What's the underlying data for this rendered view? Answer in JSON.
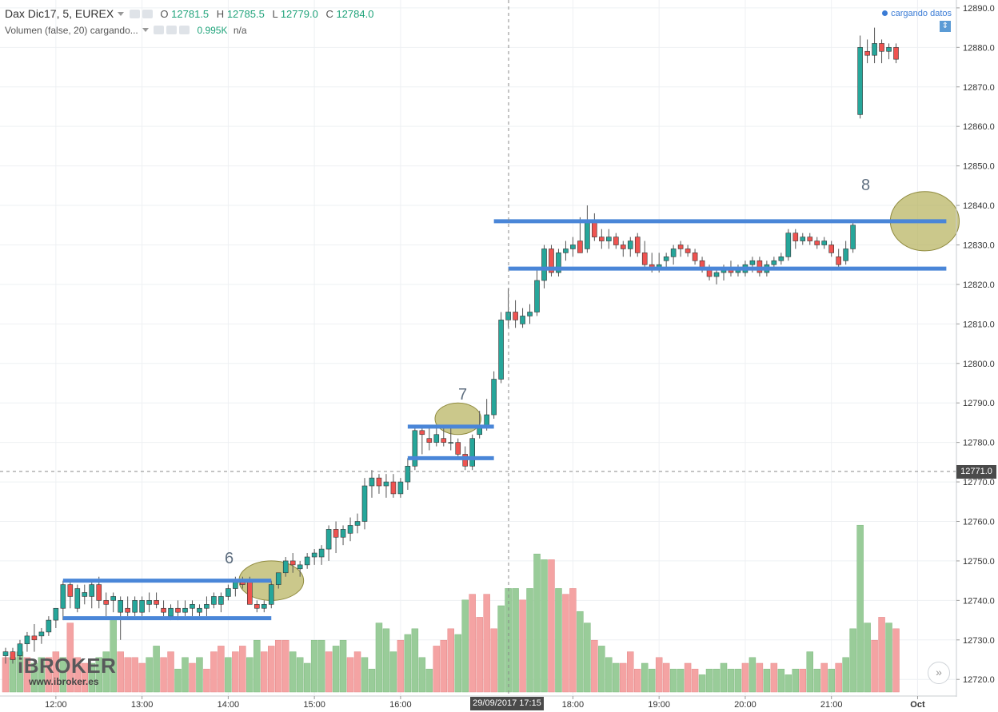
{
  "header": {
    "symbol": "Dax Dic17, 5, EUREX",
    "o_label": "O",
    "o_value": "12781.5",
    "h_label": "H",
    "h_value": "12785.5",
    "l_label": "L",
    "l_value": "12779.0",
    "c_label": "C",
    "c_value": "12784.0",
    "volume_title": "Volumen (false, 20) cargando...",
    "volume_value": "0.995K",
    "volume_na": "n/a"
  },
  "status": {
    "loading_text": "cargando datos",
    "scale_icon": "scale-icon"
  },
  "brand": {
    "name": "iBROKER",
    "url": "www.ibroker.es"
  },
  "crosshair": {
    "price_label": "12771.0",
    "time_label": "29/09/2017 17:15"
  },
  "annotations": {
    "label_6": "6",
    "label_7": "7",
    "label_8": "8"
  },
  "colors": {
    "up": "#26a69a",
    "down": "#ef5350",
    "vol_up": "#99cc99",
    "vol_down": "#f4a3a3",
    "level": "#4a86d8",
    "highlight": "#b5b05a"
  },
  "chart_data": {
    "type": "candlestick",
    "y_axis": {
      "ticks": [
        "12720.0",
        "12730.0",
        "12740.0",
        "12750.0",
        "12760.0",
        "12770.0",
        "12780.0",
        "12790.0",
        "12800.0",
        "12810.0",
        "12820.0",
        "12830.0",
        "12840.0",
        "12850.0",
        "12860.0",
        "12870.0",
        "12880.0",
        "12890.0"
      ],
      "range": [
        12716,
        12892
      ]
    },
    "x_axis": {
      "ticks": [
        {
          "label": "12:00",
          "slot": 7
        },
        {
          "label": "13:00",
          "slot": 19
        },
        {
          "label": "14:00",
          "slot": 31
        },
        {
          "label": "15:00",
          "slot": 43
        },
        {
          "label": "16:00",
          "slot": 55
        },
        {
          "label": "18:00",
          "slot": 79
        },
        {
          "label": "19:00",
          "slot": 91
        },
        {
          "label": "20:00",
          "slot": 103
        },
        {
          "label": "21:00",
          "slot": 115
        },
        {
          "label": "Oct",
          "slot": 127
        }
      ]
    },
    "candles": [
      [
        12726,
        12728,
        12724,
        12727
      ],
      [
        12727,
        12728,
        12724,
        12725
      ],
      [
        12726,
        12730,
        12725,
        12729
      ],
      [
        12729,
        12732,
        12727,
        12731
      ],
      [
        12731,
        12734,
        12727,
        12730
      ],
      [
        12731,
        12733,
        12729,
        12732
      ],
      [
        12732,
        12736,
        12731,
        12735
      ],
      [
        12735,
        12738,
        12733,
        12738
      ],
      [
        12738,
        12745,
        12735,
        12744
      ],
      [
        12744,
        12745,
        12738,
        12741
      ],
      [
        12738,
        12744,
        12737,
        12743
      ],
      [
        12741,
        12744,
        12739,
        12742
      ],
      [
        12741,
        12745,
        12738,
        12744
      ],
      [
        12744,
        12746,
        12738,
        12740
      ],
      [
        12740,
        12742,
        12736,
        12739
      ],
      [
        12740,
        12742,
        12737,
        12741
      ],
      [
        12737,
        12741,
        12730,
        12740
      ],
      [
        12738,
        12741,
        12736,
        12737
      ],
      [
        12737,
        12741,
        12736,
        12740
      ],
      [
        12737,
        12741,
        12736,
        12740
      ],
      [
        12739,
        12742,
        12737,
        12740
      ],
      [
        12740,
        12742,
        12738,
        12739
      ],
      [
        12738,
        12740,
        12736,
        12737
      ],
      [
        12736,
        12739,
        12735,
        12738
      ],
      [
        12738,
        12740,
        12735,
        12737
      ],
      [
        12737,
        12740,
        12736,
        12738
      ],
      [
        12738,
        12740,
        12736,
        12739
      ],
      [
        12737,
        12739,
        12736,
        12738
      ],
      [
        12738,
        12741,
        12736,
        12739
      ],
      [
        12739,
        12742,
        12738,
        12741
      ],
      [
        12739,
        12742,
        12737,
        12741
      ],
      [
        12741,
        12744,
        12740,
        12743
      ],
      [
        12743,
        12746,
        12741,
        12745
      ],
      [
        12745,
        12746,
        12743,
        12744
      ],
      [
        12745,
        12746,
        12739,
        12739
      ],
      [
        12739,
        12740,
        12737,
        12738
      ],
      [
        12738,
        12740,
        12737,
        12739
      ],
      [
        12739,
        12745,
        12738,
        12744
      ],
      [
        12744,
        12747,
        12743,
        12747
      ],
      [
        12747,
        12751,
        12746,
        12750
      ],
      [
        12750,
        12752,
        12747,
        12749
      ],
      [
        12748,
        12750,
        12746,
        12749
      ],
      [
        12749,
        12752,
        12748,
        12751
      ],
      [
        12751,
        12753,
        12749,
        12752
      ],
      [
        12751,
        12754,
        12749,
        12753
      ],
      [
        12753,
        12759,
        12750,
        12758
      ],
      [
        12758,
        12760,
        12752,
        12756
      ],
      [
        12756,
        12759,
        12754,
        12758
      ],
      [
        12757,
        12761,
        12755,
        12759
      ],
      [
        12759,
        12762,
        12757,
        12760
      ],
      [
        12760,
        12771,
        12758,
        12769
      ],
      [
        12769,
        12773,
        12766,
        12771
      ],
      [
        12771,
        12772,
        12767,
        12769
      ],
      [
        12769,
        12772,
        12766,
        12770
      ],
      [
        12770,
        12772,
        12766,
        12767
      ],
      [
        12767,
        12771,
        12766,
        12770
      ],
      [
        12770,
        12776,
        12768,
        12774
      ],
      [
        12774,
        12784,
        12773,
        12783
      ],
      [
        12783,
        12784,
        12777,
        12782
      ],
      [
        12781,
        12784,
        12778,
        12780
      ],
      [
        12780,
        12784,
        12779,
        12782
      ],
      [
        12781,
        12784,
        12779,
        12780
      ],
      [
        12780,
        12784,
        12778,
        12780
      ],
      [
        12780,
        12781,
        12776,
        12777
      ],
      [
        12777,
        12779,
        12773,
        12774
      ],
      [
        12774,
        12782,
        12773,
        12781
      ],
      [
        12782,
        12788,
        12781,
        12784
      ],
      [
        12784,
        12791,
        12783,
        12787
      ],
      [
        12787,
        12798,
        12786,
        12796
      ],
      [
        12796,
        12813,
        12795,
        12811
      ],
      [
        12811,
        12819,
        12809,
        12813
      ],
      [
        12813,
        12816,
        12809,
        12811
      ],
      [
        12810,
        12814,
        12809,
        12812
      ],
      [
        12812,
        12815,
        12810,
        12813
      ],
      [
        12813,
        12824,
        12812,
        12821
      ],
      [
        12821,
        12830,
        12819,
        12829
      ],
      [
        12829,
        12830,
        12822,
        12823
      ],
      [
        12823,
        12829,
        12822,
        12828
      ],
      [
        12828,
        12831,
        12826,
        12829
      ],
      [
        12829,
        12832,
        12827,
        12830
      ],
      [
        12831,
        12837,
        12828,
        12828
      ],
      [
        12829,
        12840,
        12828,
        12836
      ],
      [
        12836,
        12838,
        12831,
        12832
      ],
      [
        12832,
        12834,
        12829,
        12831
      ],
      [
        12831,
        12834,
        12829,
        12832
      ],
      [
        12832,
        12833,
        12829,
        12830
      ],
      [
        12830,
        12831,
        12827,
        12829
      ],
      [
        12829,
        12832,
        12827,
        12831
      ],
      [
        12832,
        12833,
        12827,
        12828
      ],
      [
        12828,
        12831,
        12824,
        12825
      ],
      [
        12825,
        12828,
        12823,
        12824
      ],
      [
        12824,
        12828,
        12823,
        12825
      ],
      [
        12826,
        12828,
        12824,
        12827
      ],
      [
        12827,
        12830,
        12825,
        12829
      ],
      [
        12830,
        12831,
        12827,
        12829
      ],
      [
        12829,
        12830,
        12827,
        12828
      ],
      [
        12828,
        12829,
        12825,
        12826
      ],
      [
        12826,
        12827,
        12823,
        12824
      ],
      [
        12824,
        12825,
        12821,
        12822
      ],
      [
        12822,
        12824,
        12820,
        12823
      ],
      [
        12823,
        12825,
        12821,
        12824
      ],
      [
        12824,
        12826,
        12822,
        12823
      ],
      [
        12823,
        12825,
        12822,
        12824
      ],
      [
        12823,
        12826,
        12822,
        12825
      ],
      [
        12825,
        12827,
        12823,
        12826
      ],
      [
        12826,
        12827,
        12822,
        12823
      ],
      [
        12823,
        12826,
        12822,
        12825
      ],
      [
        12825,
        12827,
        12824,
        12826
      ],
      [
        12826,
        12828,
        12825,
        12827
      ],
      [
        12827,
        12834,
        12826,
        12833
      ],
      [
        12833,
        12834,
        12829,
        12831
      ],
      [
        12831,
        12833,
        12830,
        12832
      ],
      [
        12832,
        12833,
        12830,
        12831
      ],
      [
        12831,
        12832,
        12829,
        12830
      ],
      [
        12830,
        12832,
        12829,
        12831
      ],
      [
        12830,
        12831,
        12827,
        12828
      ],
      [
        12827,
        12829,
        12824,
        12825
      ],
      [
        12826,
        12831,
        12825,
        12829
      ],
      [
        12829,
        12836,
        12828,
        12835
      ],
      [
        12863,
        12883,
        12862,
        12880
      ],
      [
        12879,
        12882,
        12876,
        12878
      ],
      [
        12878,
        12885,
        12876,
        12881
      ],
      [
        12881,
        12882,
        12876,
        12879
      ],
      [
        12879,
        12881,
        12877,
        12880
      ],
      [
        12880,
        12881,
        12876,
        12877
      ]
    ],
    "volume": {
      "ymax": 1000,
      "values": [
        [
          60,
          0
        ],
        [
          60,
          1
        ],
        [
          70,
          1
        ],
        [
          60,
          0
        ],
        [
          50,
          1
        ],
        [
          60,
          1
        ],
        [
          60,
          0
        ],
        [
          70,
          0
        ],
        [
          60,
          1
        ],
        [
          120,
          0
        ],
        [
          60,
          0
        ],
        [
          50,
          0
        ],
        [
          50,
          1
        ],
        [
          60,
          1
        ],
        [
          70,
          1
        ],
        [
          130,
          1
        ],
        [
          70,
          0
        ],
        [
          60,
          0
        ],
        [
          60,
          0
        ],
        [
          50,
          0
        ],
        [
          60,
          1
        ],
        [
          80,
          1
        ],
        [
          60,
          0
        ],
        [
          70,
          0
        ],
        [
          40,
          1
        ],
        [
          60,
          1
        ],
        [
          50,
          0
        ],
        [
          60,
          1
        ],
        [
          40,
          0
        ],
        [
          70,
          0
        ],
        [
          80,
          0
        ],
        [
          60,
          1
        ],
        [
          70,
          0
        ],
        [
          80,
          0
        ],
        [
          60,
          1
        ],
        [
          90,
          1
        ],
        [
          70,
          0
        ],
        [
          80,
          0
        ],
        [
          90,
          0
        ],
        [
          90,
          0
        ],
        [
          70,
          1
        ],
        [
          60,
          1
        ],
        [
          50,
          1
        ],
        [
          90,
          1
        ],
        [
          90,
          1
        ],
        [
          70,
          0
        ],
        [
          80,
          1
        ],
        [
          90,
          1
        ],
        [
          60,
          0
        ],
        [
          70,
          0
        ],
        [
          60,
          1
        ],
        [
          40,
          1
        ],
        [
          120,
          1
        ],
        [
          110,
          1
        ],
        [
          70,
          1
        ],
        [
          90,
          0
        ],
        [
          100,
          1
        ],
        [
          110,
          1
        ],
        [
          60,
          1
        ],
        [
          40,
          1
        ],
        [
          80,
          0
        ],
        [
          90,
          0
        ],
        [
          110,
          0
        ],
        [
          100,
          1
        ],
        [
          160,
          1
        ],
        [
          170,
          0
        ],
        [
          130,
          0
        ],
        [
          170,
          0
        ],
        [
          110,
          0
        ],
        [
          150,
          1
        ],
        [
          180,
          1
        ],
        [
          180,
          1
        ],
        [
          160,
          0
        ],
        [
          180,
          1
        ],
        [
          240,
          1
        ],
        [
          230,
          1
        ],
        [
          230,
          0
        ],
        [
          180,
          1
        ],
        [
          170,
          0
        ],
        [
          180,
          0
        ],
        [
          140,
          1
        ],
        [
          120,
          1
        ],
        [
          90,
          0
        ],
        [
          80,
          1
        ],
        [
          60,
          1
        ],
        [
          50,
          1
        ],
        [
          50,
          0
        ],
        [
          70,
          0
        ],
        [
          40,
          0
        ],
        [
          50,
          1
        ],
        [
          40,
          1
        ],
        [
          60,
          0
        ],
        [
          50,
          0
        ],
        [
          40,
          1
        ],
        [
          40,
          1
        ],
        [
          50,
          0
        ],
        [
          40,
          0
        ],
        [
          30,
          1
        ],
        [
          40,
          1
        ],
        [
          40,
          1
        ],
        [
          50,
          1
        ],
        [
          40,
          1
        ],
        [
          40,
          1
        ],
        [
          50,
          0
        ],
        [
          60,
          1
        ],
        [
          50,
          0
        ],
        [
          40,
          1
        ],
        [
          50,
          0
        ],
        [
          40,
          1
        ],
        [
          30,
          1
        ],
        [
          40,
          1
        ],
        [
          40,
          0
        ],
        [
          70,
          1
        ],
        [
          40,
          1
        ],
        [
          50,
          0
        ],
        [
          40,
          1
        ],
        [
          50,
          0
        ],
        [
          60,
          1
        ],
        [
          110,
          1
        ],
        [
          290,
          1
        ],
        [
          120,
          1
        ],
        [
          90,
          0
        ],
        [
          130,
          0
        ],
        [
          120,
          1
        ],
        [
          110,
          0
        ]
      ]
    },
    "levels": [
      {
        "name": "level-6-top",
        "price": 12745,
        "from": 8,
        "to": 37,
        "color": "#4a86d8"
      },
      {
        "name": "level-6-bottom",
        "price": 12735.5,
        "from": 8,
        "to": 37,
        "color": "#4a86d8"
      },
      {
        "name": "level-7-top",
        "price": 12784,
        "from": 56,
        "to": 68,
        "color": "#4a86d8"
      },
      {
        "name": "level-7-bottom",
        "price": 12776,
        "from": 56,
        "to": 68,
        "color": "#4a86d8"
      },
      {
        "name": "level-8-top",
        "price": 12836,
        "from": 68,
        "to": 131,
        "color": "#4a86d8"
      },
      {
        "name": "level-8-bottom",
        "price": 12824,
        "from": 70,
        "to": 131,
        "color": "#4a86d8"
      }
    ],
    "highlights": [
      {
        "name": "highlight-6",
        "cx_slot": 37,
        "cy": 12745,
        "rx_slots": 4.5,
        "ry_price": 5
      },
      {
        "name": "highlight-7",
        "cx_slot": 63,
        "cy": 12786,
        "rx_slots": 3.2,
        "ry_price": 4
      },
      {
        "name": "highlight-8",
        "cx_slot": 128,
        "cy": 12836,
        "rx_slots": 4.8,
        "ry_price": 7.5
      }
    ]
  }
}
